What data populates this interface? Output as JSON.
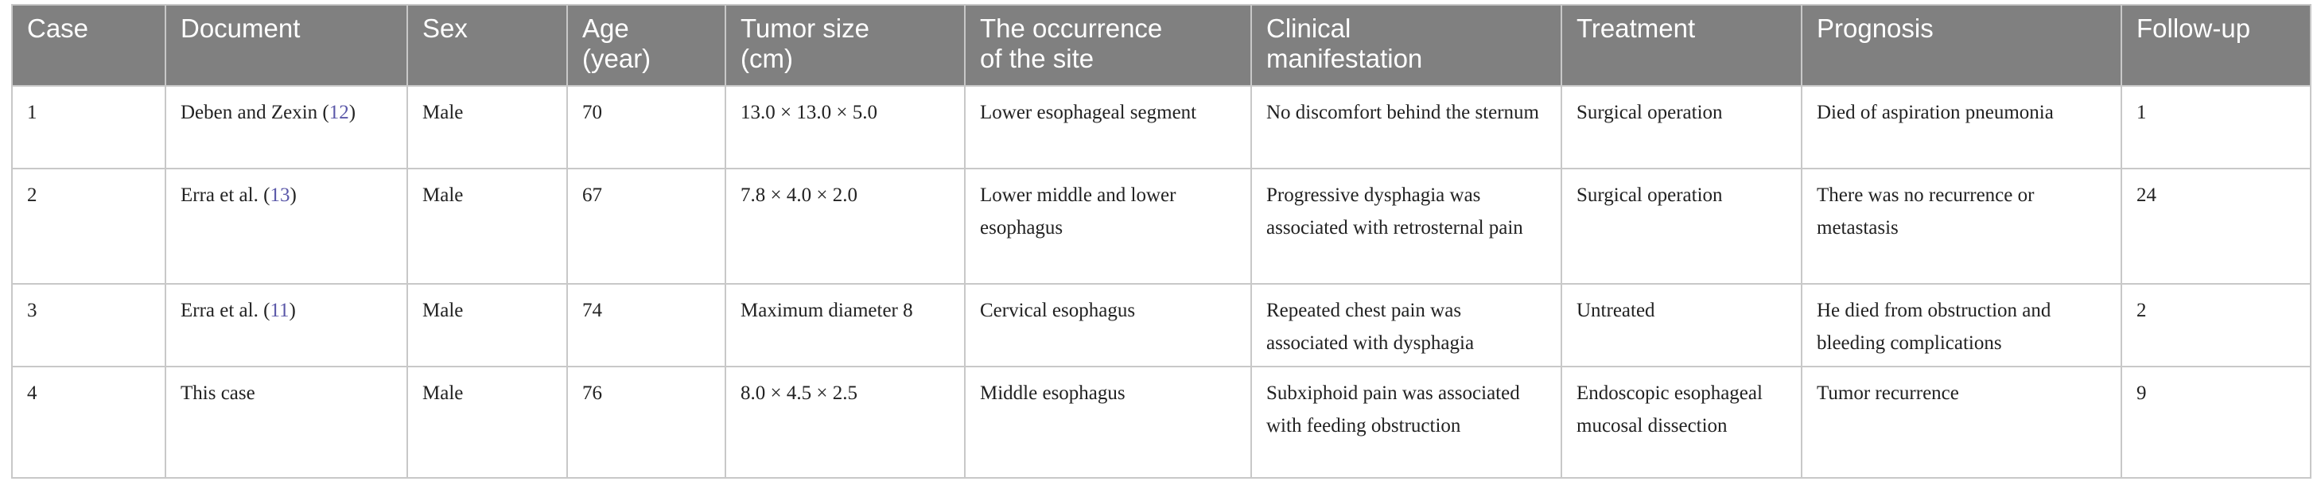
{
  "table": {
    "header": [
      "Case",
      "Document",
      "Sex",
      "Age\n(year)",
      "Tumor size\n(cm)",
      "The occurrence\nof the site",
      "Clinical\nmanifestation",
      "Treatment",
      "Prognosis",
      "Follow-up"
    ],
    "rows": [
      [
        "1",
        "Deben and Zexin (12)",
        "Male",
        "70",
        "13.0 × 13.0 × 5.0",
        "Lower esophageal segment",
        "No discomfort behind the sternum",
        "Surgical operation",
        "Died of aspiration pneumonia",
        "1"
      ],
      [
        "2",
        "Erra et al. (13)",
        "Male",
        "67",
        "7.8 × 4.0 × 2.0",
        "Lower middle and lower esophagus",
        "Progressive dysphagia was associated with retrosternal pain",
        "Surgical operation",
        "There was no recurrence or metastasis",
        "24"
      ],
      [
        "3",
        "Erra et al. (11)",
        "Male",
        "74",
        "Maximum diameter 8",
        "Cervical esophagus",
        "Repeated chest pain was associated with dysphagia",
        "Untreated",
        "He died from obstruction and bleeding complications",
        "2"
      ],
      [
        "4",
        "This case",
        "Male",
        "76",
        "8.0 × 4.5 × 2.5",
        "Middle esophagus",
        "Subxiphoid pain was associated with feeding obstruction",
        "Endoscopic esophageal mucosal dissection",
        "Tumor recurrence",
        "9"
      ]
    ]
  }
}
